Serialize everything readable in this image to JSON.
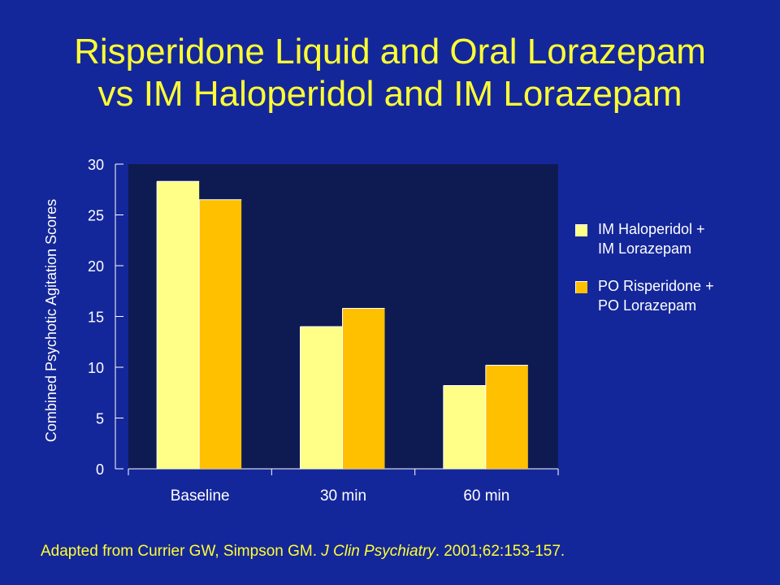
{
  "title": {
    "line1": "Risperidone Liquid and Oral Lorazepam",
    "line2": "vs IM Haloperidol and IM Lorazepam"
  },
  "colors": {
    "background": "#14279a",
    "plot_area": "#0d1b52",
    "title": "#ffff33",
    "series1": "#ffff88",
    "series2": "#ffc000"
  },
  "chart_data": {
    "type": "bar",
    "categories": [
      "Baseline",
      "30 min",
      "60 min"
    ],
    "series": [
      {
        "name": "IM Haloperidol + IM Lorazepam",
        "values": [
          28.3,
          14.0,
          8.2
        ]
      },
      {
        "name": "PO Risperidone + PO Lorazepam",
        "values": [
          26.5,
          15.8,
          10.2
        ]
      }
    ],
    "ylabel": "Combined Psychotic Agitation Scores",
    "xlabel": "",
    "ylim": [
      0,
      30
    ],
    "yticks": [
      0,
      5,
      10,
      15,
      20,
      25,
      30
    ],
    "legend_position": "right",
    "grid": false
  },
  "legend": [
    {
      "label": "IM Haloperidol +\nIM Lorazepam",
      "color": "#ffff88"
    },
    {
      "label": "PO Risperidone +\nPO Lorazepam",
      "color": "#ffc000"
    }
  ],
  "footnote": {
    "part1": "Adapted from Currier GW, Simpson GM. ",
    "journal": "J Clin Psychiatry",
    "part2": ". 2001;62:153-157."
  }
}
